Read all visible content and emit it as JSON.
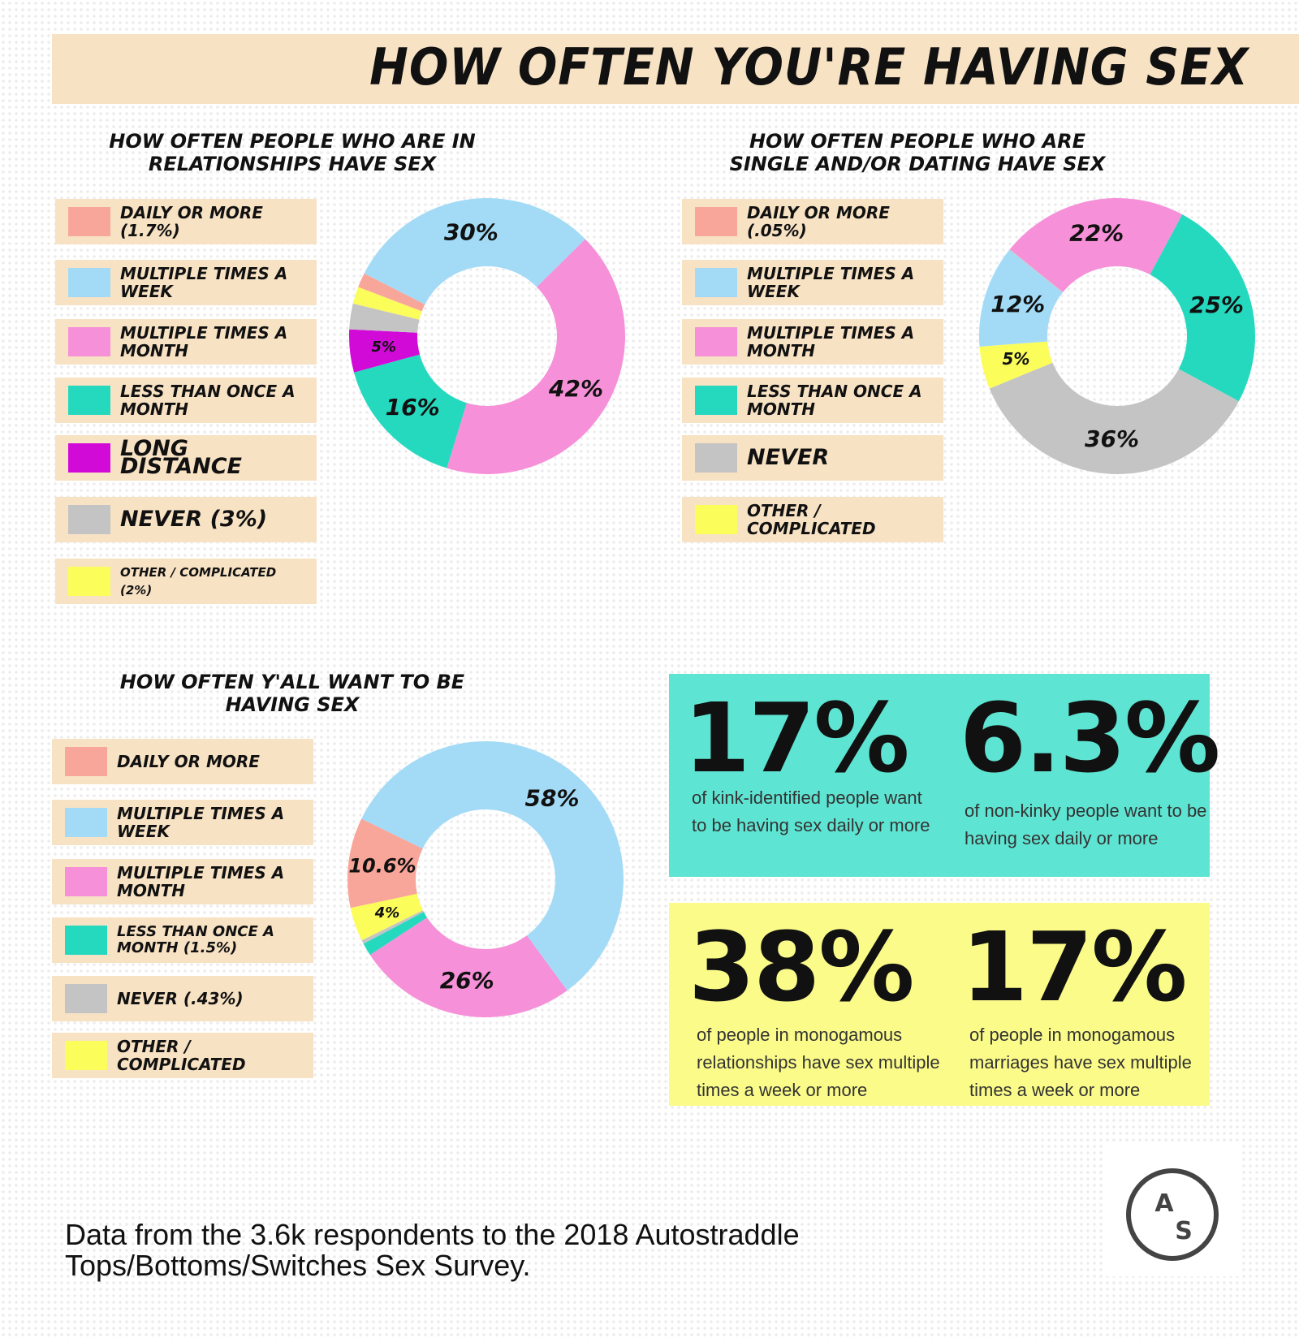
{
  "title": "HOW OFTEN YOU'RE HAVING SEX",
  "sections": {
    "relationships": {
      "title_line1": "HOW OFTEN PEOPLE WHO ARE IN",
      "title_line2": "RELATIONSHIPS HAVE SEX"
    },
    "single": {
      "title_line1": "HOW OFTEN PEOPLE WHO ARE",
      "title_line2": "SINGLE AND/OR DATING HAVE SEX"
    },
    "want": {
      "title_line1": "HOW OFTEN Y'ALL WANT TO BE",
      "title_line2": "HAVING SEX"
    }
  },
  "legend_relationships": [
    {
      "label": "DAILY OR MORE (1.7%)",
      "color": "#f9a69a",
      "icon": "daily-swatch"
    },
    {
      "label": "MULTIPLE TIMES A WEEK",
      "color": "#a3dbf7",
      "icon": "weekly-swatch"
    },
    {
      "label": "MULTIPLE TIMES A MONTH",
      "color": "#f690d8",
      "icon": "monthly-swatch"
    },
    {
      "label": "LESS THAN ONCE A MONTH",
      "color": "#25d9bf",
      "icon": "rare-swatch"
    },
    {
      "label": "LONG DISTANCE",
      "color": "#d10ad8",
      "icon": "long-distance-swatch"
    },
    {
      "label": "NEVER (3%)",
      "color": "#c4c4c4",
      "icon": "never-swatch"
    },
    {
      "label": "OTHER / COMPLICATED (2%)",
      "color": "#fbfd5b",
      "icon": "other-swatch"
    }
  ],
  "legend_single": [
    {
      "label": "DAILY OR MORE (.05%)",
      "color": "#f9a69a",
      "icon": "daily-swatch"
    },
    {
      "label": "MULTIPLE TIMES A WEEK",
      "color": "#a3dbf7",
      "icon": "weekly-swatch"
    },
    {
      "label": "MULTIPLE TIMES A MONTH",
      "color": "#f690d8",
      "icon": "monthly-swatch"
    },
    {
      "label": "LESS THAN ONCE A MONTH",
      "color": "#25d9bf",
      "icon": "rare-swatch"
    },
    {
      "label": "NEVER",
      "color": "#c4c4c4",
      "icon": "never-swatch"
    },
    {
      "label": "OTHER / COMPLICATED",
      "color": "#fbfd5b",
      "icon": "other-swatch"
    }
  ],
  "legend_want": [
    {
      "label": "DAILY OR MORE",
      "color": "#f9a69a",
      "icon": "daily-swatch"
    },
    {
      "label": "MULTIPLE TIMES A WEEK",
      "color": "#a3dbf7",
      "icon": "weekly-swatch"
    },
    {
      "label": "MULTIPLE TIMES A MONTH",
      "color": "#f690d8",
      "icon": "monthly-swatch"
    },
    {
      "label": "LESS THAN ONCE A MONTH (1.5%)",
      "color": "#25d9bf",
      "icon": "rare-swatch"
    },
    {
      "label": "NEVER (.43%)",
      "color": "#c4c4c4",
      "icon": "never-swatch"
    },
    {
      "label": "OTHER / COMPLICATED",
      "color": "#fbfd5b",
      "icon": "other-swatch"
    }
  ],
  "chart_data": [
    {
      "type": "pie",
      "title": "HOW OFTEN PEOPLE WHO ARE IN RELATIONSHIPS HAVE SEX",
      "categories": [
        "Multiple times a week",
        "Multiple times a month",
        "Less than once a month",
        "Long distance",
        "Never",
        "Other / complicated",
        "Daily or more"
      ],
      "values": [
        30,
        42,
        16,
        5,
        3,
        2,
        1.7
      ],
      "data_labels": [
        "30%",
        "42%",
        "16%",
        "5%",
        "",
        "",
        ""
      ],
      "colors": [
        "#a3dbf7",
        "#f690d8",
        "#25d9bf",
        "#d10ad8",
        "#c4c4c4",
        "#fbfd5b",
        "#f9a69a"
      ]
    },
    {
      "type": "pie",
      "title": "HOW OFTEN PEOPLE WHO ARE SINGLE AND/OR DATING HAVE SEX",
      "categories": [
        "Multiple times a month",
        "Less than once a month",
        "Never",
        "Other / complicated",
        "Multiple times a week",
        "Daily or more"
      ],
      "values": [
        22,
        25,
        36,
        5,
        12,
        0.05
      ],
      "data_labels": [
        "22%",
        "25%",
        "36%",
        "5%",
        "12%",
        ""
      ],
      "colors": [
        "#f690d8",
        "#25d9bf",
        "#c4c4c4",
        "#fbfd5b",
        "#a3dbf7",
        "#f9a69a"
      ]
    },
    {
      "type": "pie",
      "title": "HOW OFTEN Y'ALL WANT TO BE HAVING SEX",
      "categories": [
        "Multiple times a week",
        "Multiple times a month",
        "Less than once a month",
        "Never",
        "Other / complicated",
        "Daily or more"
      ],
      "values": [
        58,
        26,
        1.5,
        0.43,
        4,
        10.6
      ],
      "data_labels": [
        "58%",
        "26%",
        "",
        "",
        "4%",
        "10.6%"
      ],
      "colors": [
        "#a3dbf7",
        "#f690d8",
        "#25d9bf",
        "#c4c4c4",
        "#fbfd5b",
        "#f9a69a"
      ]
    }
  ],
  "stats": {
    "kink": {
      "value": "17%",
      "text": "of kink-identified people want to be having sex daily or more"
    },
    "nonkink": {
      "value": "6.3%",
      "text": "of non-kinky people want to be having sex daily or more"
    },
    "mono_rel": {
      "value": "38%",
      "text": "of people in monogamous relationships have sex multiple times a week or more"
    },
    "mono_mar": {
      "value": "17%",
      "text": "of people in monogamous marriages have sex multiple times a week or more"
    },
    "teal_color": "#5ee4d2",
    "yellow_color": "#fbfb8a"
  },
  "footnote": "Data from the 3.6k respondents to the 2018 Autostraddle Tops/Bottoms/Switches Sex Survey.",
  "logo": {
    "top": "A",
    "bottom": "S"
  }
}
